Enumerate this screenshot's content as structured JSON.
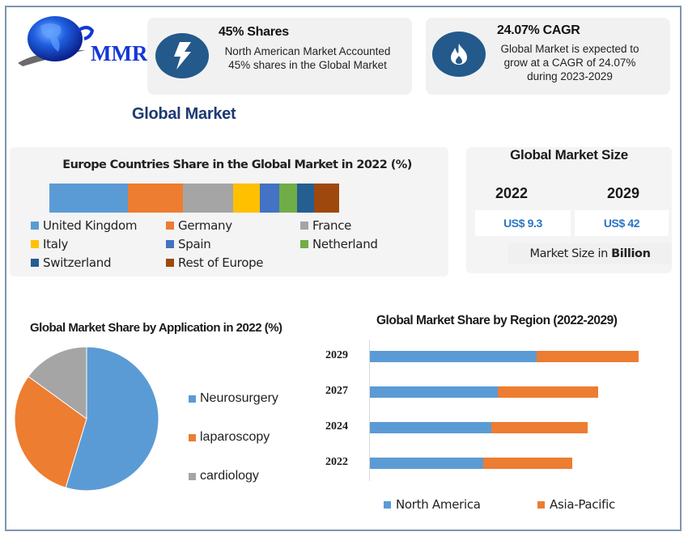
{
  "logo": {
    "text": "MMR"
  },
  "stat_cards": [
    {
      "icon": "lightning-bolt-icon",
      "title": "45% Shares",
      "line1": "North American Market Accounted",
      "line2": "45% shares in the Global Market"
    },
    {
      "icon": "flame-icon",
      "title": "24.07% CAGR",
      "line1": "Global Market is expected to",
      "line2": "grow at a CAGR of 24.07%",
      "line3": "during 2023-2029"
    }
  ],
  "section_title": "Global Market",
  "market_size": {
    "title": "Global Market Size",
    "years": [
      {
        "year": "2022",
        "value": "US$ 9.3"
      },
      {
        "year": "2029",
        "value": "US$ 42"
      }
    ],
    "unit_prefix": "Market Size in ",
    "unit_bold": "Billion"
  },
  "colors": {
    "blue": "#5b9bd5",
    "orange": "#ed7d31",
    "gray": "#a5a5a5",
    "yellow": "#ffc000",
    "royal_blue": "#4472c4",
    "green": "#70ad47",
    "dark_blue": "#255e91",
    "brown": "#9e480e",
    "icon_bg": "#23598b",
    "frame": "#7f95b1"
  },
  "chart_data": [
    {
      "type": "bar",
      "orientation": "horizontal-stacked-100",
      "title": "Europe Countries Share in the Global Market in 2022 (%)",
      "categories": [
        "United Kingdom",
        "Germany",
        "France",
        "Italy",
        "Spain",
        "Netherland",
        "Switzerland",
        "Rest of Europe"
      ],
      "values": [
        27.1,
        19.0,
        17.2,
        9.4,
        6.6,
        6.2,
        5.9,
        8.6
      ],
      "colors": [
        "#5b9bd5",
        "#ed7d31",
        "#a5a5a5",
        "#ffc000",
        "#4472c4",
        "#70ad47",
        "#255e91",
        "#9e480e"
      ],
      "legend_position": "bottom",
      "grid": false
    },
    {
      "type": "pie",
      "title": "Global Market Share by Application in 2022 (%)",
      "categories": [
        "Neurosurgery",
        "laparoscopy",
        "cardiology"
      ],
      "values": [
        54.7,
        30.3,
        15.0
      ],
      "colors": [
        "#5b9bd5",
        "#ed7d31",
        "#a5a5a5"
      ],
      "legend_position": "right"
    },
    {
      "type": "bar",
      "orientation": "horizontal-stacked",
      "title": "Global Market Share by Region (2022-2029)",
      "categories": [
        "2029",
        "2027",
        "2024",
        "2022"
      ],
      "series": [
        {
          "name": "North America",
          "values": [
            205.6,
            158.3,
            150.0,
            140.3
          ],
          "color": "#5b9bd5"
        },
        {
          "name": "Asia-Pacific",
          "values": [
            126.4,
            123.7,
            118.6,
            110.0
          ],
          "color": "#ed7d31"
        }
      ],
      "xlabel": "",
      "ylabel": "",
      "value_units": "relative (no axis scale shown)",
      "legend_position": "bottom",
      "grid": false
    }
  ]
}
